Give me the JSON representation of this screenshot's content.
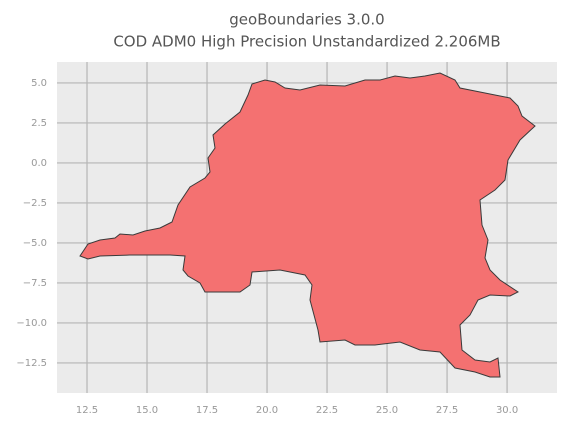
{
  "chart_data": {
    "type": "map",
    "title": "geoBoundaries 3.0.0",
    "subtitle": "COD ADM0 High Precision Unstandardized 2.206MB",
    "xlim": [
      11.25,
      32.08
    ],
    "ylim": [
      -14.38,
      6.31
    ],
    "xticks": [
      12.5,
      {
        "value": 15,
        "label": "15.0"
      },
      17.5,
      {
        "value": 20,
        "label": "20.0"
      },
      22.5,
      {
        "value": 25,
        "label": "25.0"
      },
      27.5,
      {
        "value": 30,
        "label": "30.0"
      }
    ],
    "yticks": [
      {
        "value": 5,
        "label": "5.0"
      },
      {
        "value": 2.5,
        "label": "2.5"
      },
      {
        "value": 0,
        "label": "0.0"
      },
      {
        "value": -2.5,
        "label": "−2.5"
      },
      {
        "value": -5,
        "label": "−5.0"
      },
      {
        "value": -7.5,
        "label": "−7.5"
      },
      {
        "value": -10,
        "label": "−10.0"
      },
      {
        "value": -12.5,
        "label": "−12.5"
      }
    ],
    "grid": true
  }
}
